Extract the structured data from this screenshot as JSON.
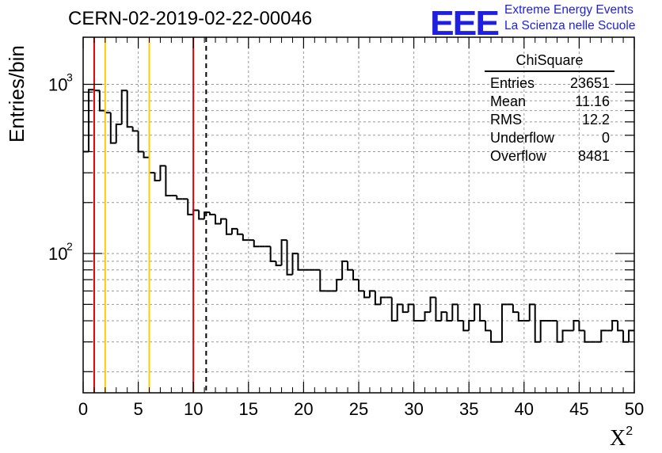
{
  "title": "CERN-02-2019-02-22-00046",
  "logo": {
    "text": "EEE",
    "line1": "Extreme Energy Events",
    "line2": "La Scienza nelle Scuole",
    "color": "#1f1fdf"
  },
  "stats_box": {
    "name": "ChiSquare",
    "rows": [
      {
        "label": "Entries",
        "value": "23651"
      },
      {
        "label": "Mean",
        "value": "11.16"
      },
      {
        "label": "RMS",
        "value": "12.2"
      },
      {
        "label": "Underflow",
        "value": "0"
      },
      {
        "label": "Overflow",
        "value": "8481"
      }
    ]
  },
  "chart_data": {
    "type": "histogram",
    "xlabel": "X",
    "xlabel_sup": "2",
    "ylabel": "Entries/bin",
    "xlim": [
      0,
      50
    ],
    "ylim": [
      15,
      1900
    ],
    "log_y": true,
    "grid": true,
    "bin_width": 0.5,
    "xticks": [
      "0",
      "5",
      "10",
      "15",
      "20",
      "25",
      "30",
      "35",
      "40",
      "45",
      "50"
    ],
    "yticks": [
      {
        "value": 100,
        "label": "10",
        "sup": "2"
      },
      {
        "value": 1000,
        "label": "10",
        "sup": "3"
      }
    ],
    "values": [
      400,
      930,
      920,
      700,
      680,
      450,
      580,
      920,
      560,
      530,
      400,
      370,
      300,
      270,
      330,
      220,
      220,
      210,
      210,
      170,
      180,
      160,
      175,
      170,
      150,
      160,
      130,
      140,
      130,
      120,
      120,
      110,
      110,
      110,
      90,
      85,
      120,
      75,
      100,
      80,
      80,
      80,
      80,
      60,
      60,
      60,
      70,
      90,
      80,
      70,
      60,
      55,
      60,
      50,
      55,
      55,
      40,
      50,
      45,
      50,
      40,
      40,
      45,
      55,
      40,
      45,
      40,
      50,
      40,
      35,
      40,
      50,
      40,
      35,
      30,
      30,
      50,
      50,
      45,
      40,
      40,
      50,
      30,
      40,
      40,
      40,
      30,
      35,
      35,
      40,
      35,
      30,
      30,
      30,
      35,
      35,
      40,
      35,
      30,
      35
    ],
    "vlines": [
      {
        "x": 1,
        "color": "#dd0000",
        "style": "solid"
      },
      {
        "x": 2,
        "color": "#ffcc00",
        "style": "solid"
      },
      {
        "x": 6,
        "color": "#ffcc00",
        "style": "solid"
      },
      {
        "x": 10,
        "color": "#dd0000",
        "style": "solid"
      },
      {
        "x": 11.16,
        "color": "#000000",
        "style": "dashed"
      }
    ]
  }
}
